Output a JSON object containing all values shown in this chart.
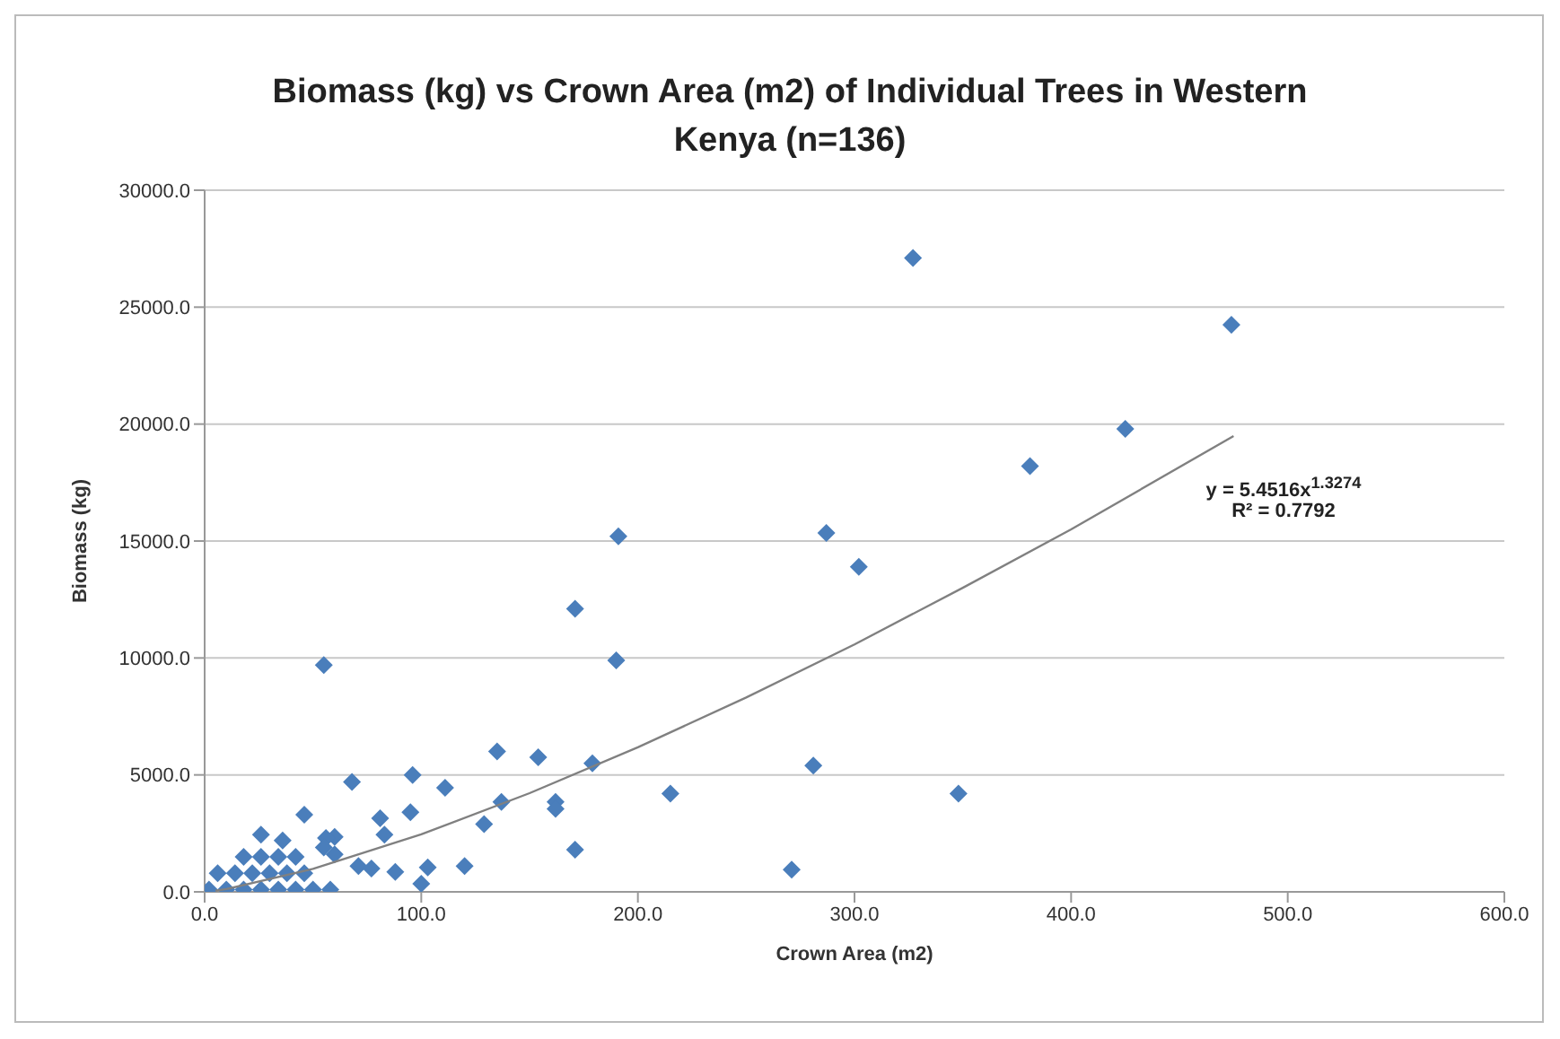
{
  "chart_data": {
    "type": "scatter",
    "title": "Biomass (kg) vs Crown Area (m2) of Individual Trees in Western Kenya (n=136)",
    "xlabel": "Crown Area (m2)",
    "ylabel": "Biomass (kg)",
    "xlim": [
      0,
      600
    ],
    "xticks": [
      {
        "value": 0,
        "label": "0.0"
      },
      {
        "value": 100,
        "label": "100.0"
      },
      {
        "value": 200,
        "label": "200.0"
      },
      {
        "value": 300,
        "label": "300.0"
      },
      {
        "value": 400,
        "label": "400.0"
      },
      {
        "value": 500,
        "label": "500.0"
      },
      {
        "value": 600,
        "label": "600.0"
      }
    ],
    "ylim": [
      0,
      30000
    ],
    "yticks": [
      {
        "value": 0,
        "label": "0.0"
      },
      {
        "value": 5000,
        "label": "5000.0"
      },
      {
        "value": 10000,
        "label": "10000.0"
      },
      {
        "value": 15000,
        "label": "15000.0"
      },
      {
        "value": 20000,
        "label": "20000.0"
      },
      {
        "value": 25000,
        "label": "25000.0"
      },
      {
        "value": 30000,
        "label": "30000.0"
      }
    ],
    "grid": "y",
    "legend": false,
    "series": [
      {
        "type": "scatter",
        "marker": "diamond",
        "color": "#4a7ebb",
        "x": [
          327,
          474,
          425,
          381,
          191,
          287,
          302,
          190,
          171,
          179,
          281,
          215,
          348,
          271,
          55,
          135,
          154,
          68,
          96,
          111,
          95,
          46,
          81,
          137,
          129,
          162,
          162,
          171,
          83,
          26,
          36,
          88,
          103,
          100,
          120,
          71,
          77,
          60,
          56,
          55,
          60,
          2,
          10,
          18,
          26,
          34,
          42,
          50,
          58,
          6,
          14,
          22,
          30,
          38,
          46,
          18,
          26,
          34,
          42
        ],
        "values": [
          27100,
          24250,
          19800,
          18200,
          15200,
          15350,
          13900,
          9900,
          12100,
          5500,
          5400,
          4200,
          4200,
          950,
          9700,
          6000,
          5750,
          4700,
          5000,
          4450,
          3400,
          3300,
          3150,
          3850,
          2900,
          3850,
          3550,
          1800,
          2450,
          2450,
          2200,
          850,
          1050,
          350,
          1100,
          1100,
          1000,
          2350,
          2300,
          1900,
          1600,
          100,
          100,
          100,
          100,
          100,
          100,
          100,
          100,
          800,
          800,
          800,
          800,
          800,
          800,
          1500,
          1500,
          1500,
          1500
        ]
      },
      {
        "type": "line",
        "marker": "none",
        "line_style": "solid",
        "color": "#808080",
        "x": [
          5,
          10,
          50,
          100,
          150,
          200,
          250,
          300,
          350,
          400,
          475
        ],
        "values": [
          50,
          120,
          980,
          2460,
          4220,
          6180,
          8310,
          10580,
          13000,
          15500,
          19490
        ]
      }
    ],
    "annotations": [
      "y = 5.4516x$^{1.3274}$",
      "R² = 0.7792"
    ]
  }
}
